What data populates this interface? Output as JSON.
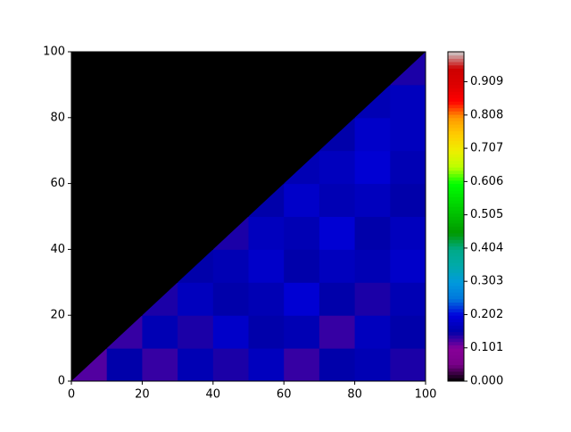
{
  "chart_data": {
    "type": "contour",
    "x": [
      0,
      10,
      20,
      30,
      40,
      50,
      60,
      70,
      80,
      90,
      100
    ],
    "y": [
      0,
      10,
      20,
      30,
      40,
      50,
      60,
      70,
      80,
      90,
      100
    ],
    "z": [
      [
        0.12,
        0.15,
        0.13,
        0.16,
        0.14,
        0.17,
        0.13,
        0.15,
        0.16,
        0.14
      ],
      [
        0,
        0.13,
        0.16,
        0.14,
        0.18,
        0.15,
        0.16,
        0.13,
        0.17,
        0.15
      ],
      [
        0,
        0,
        0.14,
        0.17,
        0.15,
        0.16,
        0.19,
        0.15,
        0.14,
        0.16
      ],
      [
        0,
        0,
        0,
        0.15,
        0.16,
        0.18,
        0.15,
        0.17,
        0.16,
        0.18
      ],
      [
        0,
        0,
        0,
        0,
        0.14,
        0.17,
        0.16,
        0.19,
        0.15,
        0.17
      ],
      [
        0,
        0,
        0,
        0,
        0,
        0.15,
        0.18,
        0.16,
        0.17,
        0.15
      ],
      [
        0,
        0,
        0,
        0,
        0,
        0,
        0.16,
        0.17,
        0.19,
        0.16
      ],
      [
        0,
        0,
        0,
        0,
        0,
        0,
        0,
        0.15,
        0.18,
        0.17
      ],
      [
        0,
        0,
        0,
        0,
        0,
        0,
        0,
        0,
        0.16,
        0.17
      ],
      [
        0,
        0,
        0,
        0,
        0,
        0,
        0,
        0,
        0,
        0.14
      ]
    ],
    "xlim": [
      0,
      100
    ],
    "ylim": [
      0,
      100
    ],
    "xticks": [
      0,
      20,
      40,
      60,
      80,
      100
    ],
    "yticks": [
      0,
      20,
      40,
      60,
      80,
      100
    ],
    "colorbar": {
      "lim": [
        0,
        1
      ],
      "ticks": [
        {
          "value": 0,
          "label": "0.000"
        },
        {
          "value": 0.101,
          "label": "0.101"
        },
        {
          "value": 0.202,
          "label": "0.202"
        },
        {
          "value": 0.303,
          "label": "0.303"
        },
        {
          "value": 0.404,
          "label": "0.404"
        },
        {
          "value": 0.505,
          "label": "0.505"
        },
        {
          "value": 0.606,
          "label": "0.606"
        },
        {
          "value": 0.707,
          "label": "0.707"
        },
        {
          "value": 0.808,
          "label": "0.808"
        },
        {
          "value": 0.909,
          "label": "0.909"
        }
      ],
      "colors": [
        "#000000",
        "#770088",
        "#880099",
        "#0000aa",
        "#0000dd",
        "#0077dd",
        "#0099dd",
        "#00aaaa",
        "#00aa88",
        "#009900",
        "#00bb00",
        "#00dd00",
        "#00ff00",
        "#bbff00",
        "#eeee00",
        "#ffcc00",
        "#ff9900",
        "#ff0000",
        "#dd0000",
        "#cc0000",
        "#cccccc"
      ]
    }
  }
}
